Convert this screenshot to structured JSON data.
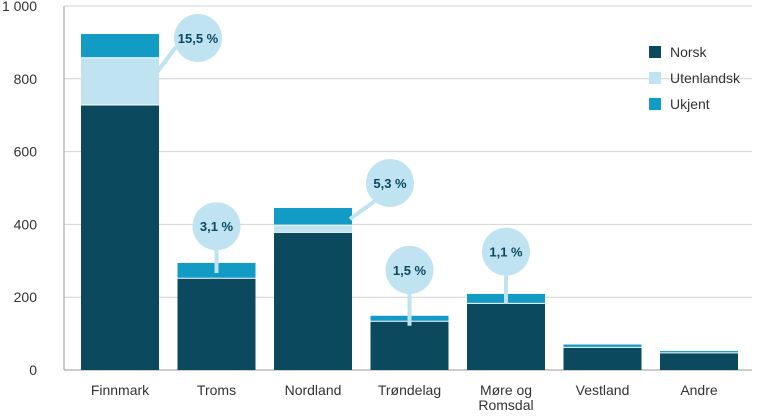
{
  "chart_data": {
    "type": "bar",
    "stacked": true,
    "categories": [
      [
        "Finnmark"
      ],
      [
        "Troms"
      ],
      [
        "Nordland"
      ],
      [
        "Trøndelag"
      ],
      [
        "Møre og",
        "Romsdal"
      ],
      [
        "Vestland"
      ],
      [
        "Andre"
      ]
    ],
    "series": [
      {
        "name": "Norsk",
        "color": "#0b4a5e",
        "values": [
          728,
          252,
          378,
          134,
          183,
          62,
          47
        ]
      },
      {
        "name": "Utenlandsk",
        "color": "#bfe3f0",
        "values": [
          130,
          0,
          20,
          0,
          0,
          0,
          0
        ]
      },
      {
        "name": "Ukjent",
        "color": "#129bc4",
        "values": [
          65,
          42,
          47,
          15,
          26,
          8,
          5
        ]
      }
    ],
    "annotations": [
      {
        "category_index": 0,
        "text": "15,5 %",
        "bubble_y": 1000
      },
      {
        "category_index": 1,
        "text": "3,1 %",
        "bubble_y": 395
      },
      {
        "category_index": 2,
        "text": "5,3 %",
        "bubble_y": 520
      },
      {
        "category_index": 3,
        "text": "1,5 %",
        "bubble_y": 275
      },
      {
        "category_index": 4,
        "text": "1,1 %",
        "bubble_y": 325
      }
    ],
    "y_ticks": [
      "0",
      "200",
      "400",
      "600",
      "800",
      "1 000"
    ],
    "ylim": [
      0,
      1000
    ],
    "grid": true,
    "legend_position": "top-right",
    "title": "",
    "xlabel": "",
    "ylabel": ""
  }
}
